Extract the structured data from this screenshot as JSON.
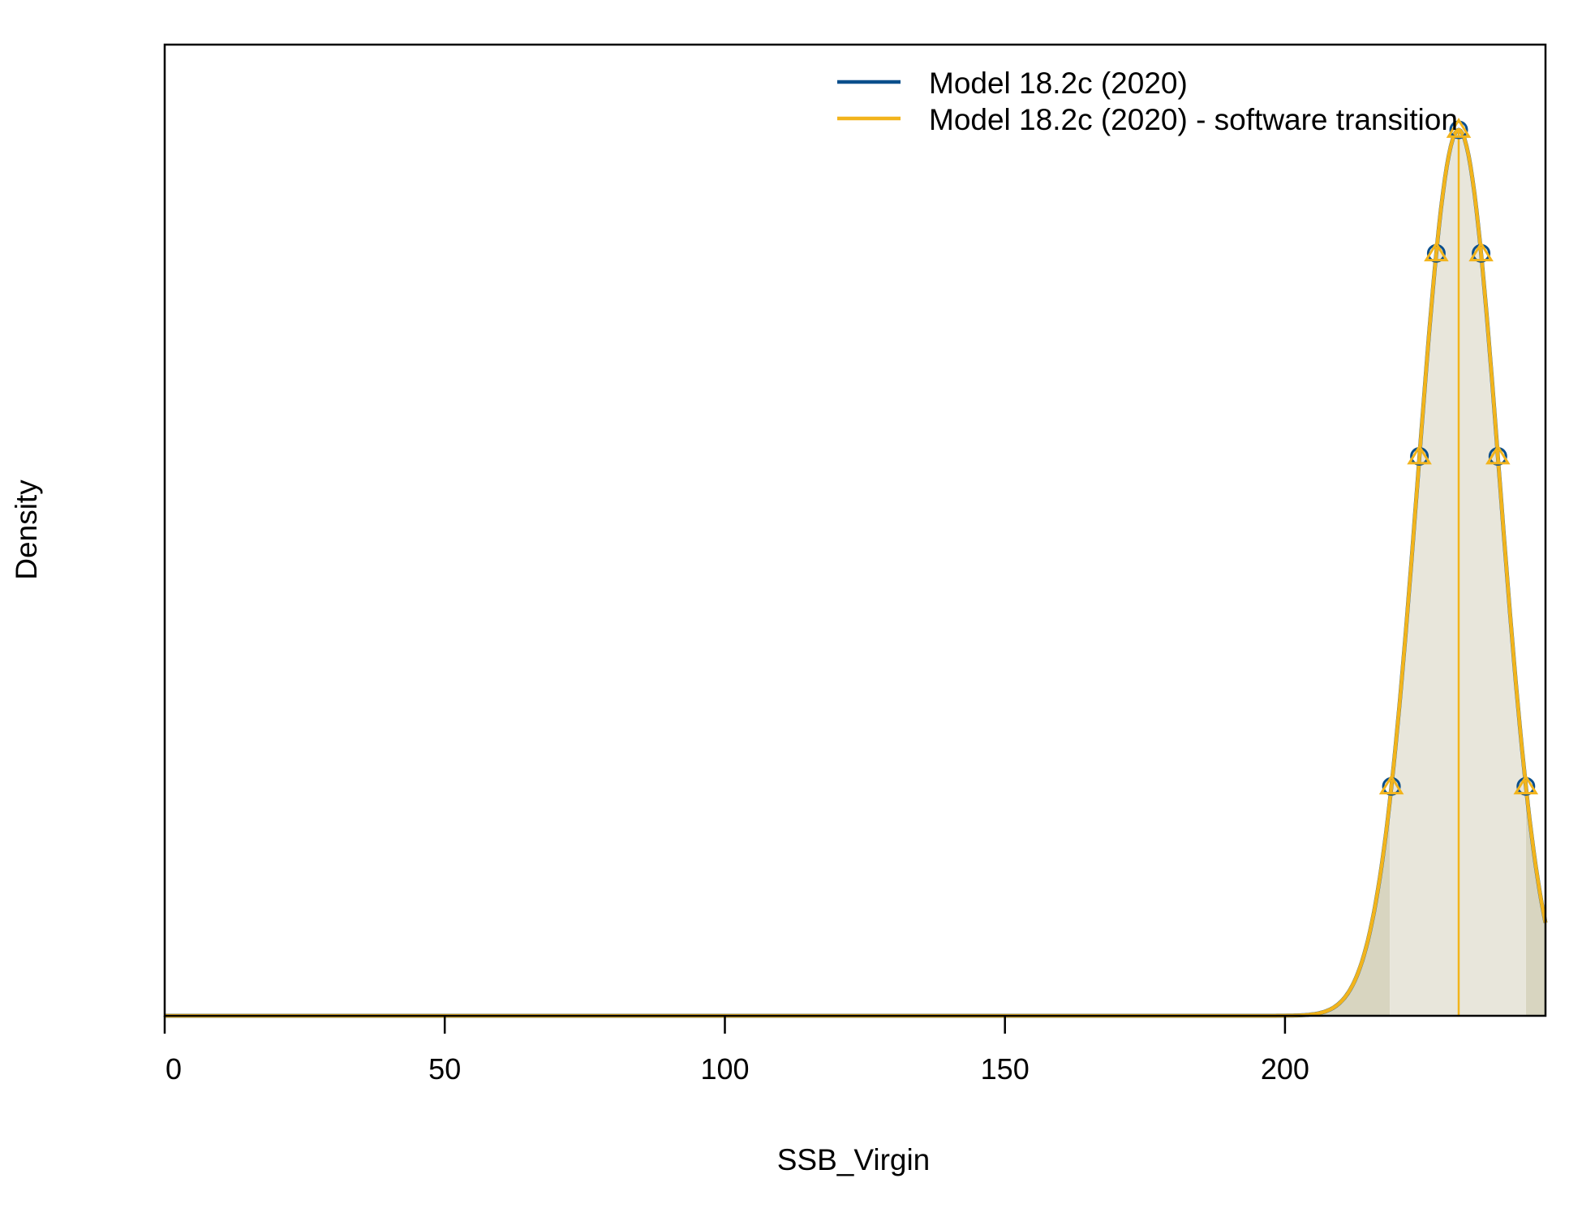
{
  "chart_data": {
    "type": "line",
    "title": "",
    "xlabel": "SSB_Virgin",
    "ylabel": "Density",
    "xlim": [
      0,
      246.5
    ],
    "ylim": [
      0,
      1
    ],
    "x_ticks": [
      {
        "value": 0,
        "label": "0"
      },
      {
        "value": 50,
        "label": "50"
      },
      {
        "value": 100,
        "label": "100"
      },
      {
        "value": 150,
        "label": "150"
      },
      {
        "value": 200,
        "label": "200"
      }
    ],
    "y_ticks": [],
    "grid": false,
    "legend_position": "top-right",
    "distribution": {
      "mean": 231.0,
      "sd": 7.3,
      "interval_95": [
        218.7,
        243.0
      ]
    },
    "series": [
      {
        "name": "Model 18.2c (2020)",
        "color": "#0b4f8c",
        "marker": "circle",
        "marker_x": [
          219.0,
          224.0,
          227.0,
          231.0,
          235.0,
          238.0,
          243.0
        ]
      },
      {
        "name": "Model 18.2c (2020) - software transition",
        "color": "#f2b41c",
        "marker": "triangle",
        "marker_x": [
          219.0,
          224.0,
          227.0,
          231.0,
          235.0,
          238.0,
          243.0
        ]
      }
    ],
    "colors": {
      "fill_inner": "#e8e6db",
      "fill_tail": "#d8d5c0",
      "axis": "#000000"
    }
  }
}
